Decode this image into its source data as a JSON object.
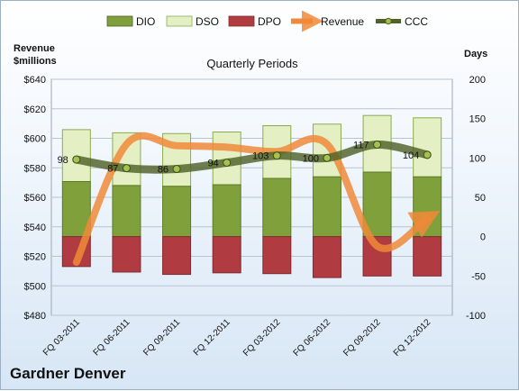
{
  "chart_data": {
    "type": "bar",
    "title": "Quarterly Periods",
    "company": "Gardner Denver",
    "left_axis_label_line1": "Revenue",
    "left_axis_label_line2": "$millions",
    "right_axis_label": "Days",
    "categories": [
      "FQ 03-2011",
      "FQ 06-2011",
      "FQ 09-2011",
      "FQ 12-2011",
      "FQ 03-2012",
      "FQ 06-2012",
      "FQ 09-2012",
      "FQ 12-2012"
    ],
    "left_ylim": [
      480,
      640
    ],
    "left_ticks": [
      "$640",
      "$620",
      "$600",
      "$580",
      "$560",
      "$540",
      "$520",
      "$500",
      "$480"
    ],
    "right_ylim": [
      -100,
      200
    ],
    "right_ticks": [
      "200",
      "150",
      "100",
      "50",
      "0",
      "-50",
      "-100"
    ],
    "grid": true,
    "legend_position": "top",
    "series": [
      {
        "name": "DIO",
        "axis": "right",
        "values": [
          70,
          65,
          64,
          66,
          74,
          76,
          82,
          76
        ],
        "color": "#7fa03a"
      },
      {
        "name": "DSO",
        "axis": "right",
        "values": [
          66,
          67,
          67,
          67,
          67,
          67,
          72,
          75
        ],
        "color": "#e4f0c4"
      },
      {
        "name": "DPO",
        "axis": "right",
        "values": [
          -38,
          -45,
          -48,
          -46,
          -47,
          -52,
          -50,
          -50
        ],
        "color": "#b03c41"
      },
      {
        "name": "Revenue",
        "axis": "left",
        "values": [
          516,
          596,
          595,
          594,
          591,
          596,
          527,
          546
        ],
        "color": "#f08a3a"
      },
      {
        "name": "CCC",
        "axis": "right",
        "values": [
          98,
          87,
          86,
          94,
          103,
          100,
          117,
          104
        ],
        "color": "#4f6228"
      }
    ],
    "ccc_labels": [
      "98",
      "87",
      "86",
      "94",
      "103",
      "100",
      "117",
      "104"
    ]
  }
}
